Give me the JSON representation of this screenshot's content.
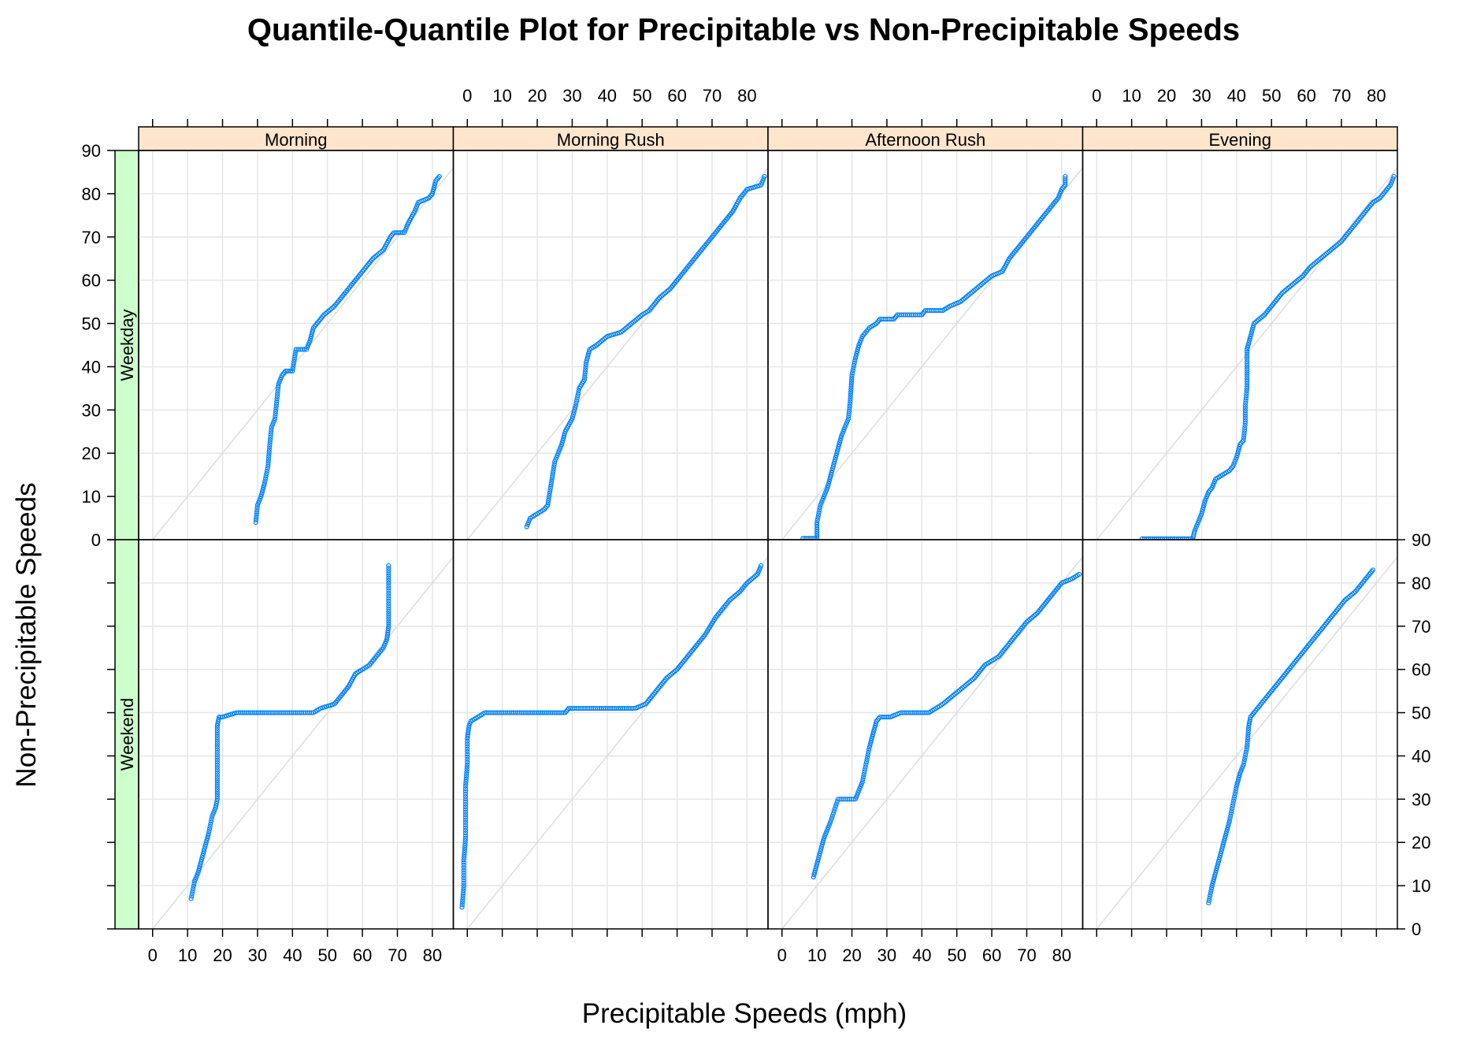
{
  "chart_data": {
    "type": "scatter",
    "title": "Quantile-Quantile Plot for Precipitable vs Non-Precipitable Speeds",
    "xlabel": "Precipitable Speeds (mph)",
    "ylabel": "Non-Precipitable Speeds",
    "xlim": [
      -4,
      86
    ],
    "ylim": [
      0,
      90
    ],
    "ticks": [
      0,
      10,
      20,
      30,
      40,
      50,
      60,
      70,
      80,
      90
    ],
    "tick_labels": [
      "0",
      "10",
      "20",
      "30",
      "40",
      "50",
      "60",
      "70",
      "80",
      "90"
    ],
    "columns": [
      "Morning",
      "Morning Rush",
      "Afternoon Rush",
      "Evening"
    ],
    "rows": [
      "Weekday",
      "Weekend"
    ],
    "reference_line": "y = x",
    "colors": {
      "points": "#0080ff",
      "strip_col": "#ffe5cc",
      "strip_row": "#ccffcc",
      "grid": "#e6e6e6",
      "ref_line": "#dddddd",
      "frame": "#000000"
    },
    "panels": [
      {
        "row": "Weekday",
        "column": "Morning",
        "qq_path": [
          [
            29.5,
            4
          ],
          [
            30,
            8
          ],
          [
            31,
            10
          ],
          [
            32,
            13
          ],
          [
            33,
            17
          ],
          [
            33.5,
            22
          ],
          [
            34,
            26
          ],
          [
            35,
            28
          ],
          [
            35.5,
            32
          ],
          [
            36,
            36
          ],
          [
            37,
            38
          ],
          [
            38,
            39
          ],
          [
            40,
            39
          ],
          [
            41,
            44
          ],
          [
            44,
            44
          ],
          [
            45,
            46
          ],
          [
            46,
            49
          ],
          [
            49,
            52
          ],
          [
            52,
            54
          ],
          [
            56,
            58
          ],
          [
            60,
            62
          ],
          [
            63,
            65
          ],
          [
            66,
            67
          ],
          [
            68,
            70
          ],
          [
            69,
            71
          ],
          [
            72,
            71
          ],
          [
            73,
            73
          ],
          [
            75,
            76
          ],
          [
            76,
            78
          ],
          [
            79,
            79
          ],
          [
            80,
            80
          ],
          [
            81,
            83
          ],
          [
            82,
            84
          ]
        ]
      },
      {
        "row": "Weekday",
        "column": "Morning Rush",
        "qq_path": [
          [
            17,
            3
          ],
          [
            18,
            5
          ],
          [
            20,
            6
          ],
          [
            22,
            7
          ],
          [
            23,
            8
          ],
          [
            24,
            13
          ],
          [
            25,
            18
          ],
          [
            27,
            22
          ],
          [
            28,
            25
          ],
          [
            30,
            28
          ],
          [
            31,
            31
          ],
          [
            32,
            35
          ],
          [
            33.5,
            37
          ],
          [
            34,
            41
          ],
          [
            35,
            44
          ],
          [
            37,
            45
          ],
          [
            40,
            47
          ],
          [
            44,
            48
          ],
          [
            47,
            50
          ],
          [
            50,
            52
          ],
          [
            52,
            53
          ],
          [
            55,
            56
          ],
          [
            58,
            58
          ],
          [
            61,
            61
          ],
          [
            63,
            63
          ],
          [
            65,
            65
          ],
          [
            68,
            68
          ],
          [
            70,
            70
          ],
          [
            74,
            74
          ],
          [
            76,
            76
          ],
          [
            78,
            79
          ],
          [
            80,
            81
          ],
          [
            84,
            82
          ],
          [
            85,
            84
          ]
        ]
      },
      {
        "row": "Weekday",
        "column": "Afternoon Rush",
        "qq_path": [
          [
            6,
            0.3
          ],
          [
            10,
            0.3
          ],
          [
            10,
            4
          ],
          [
            11,
            8
          ],
          [
            12,
            10
          ],
          [
            13,
            12
          ],
          [
            14,
            15
          ],
          [
            15,
            18
          ],
          [
            16,
            21
          ],
          [
            17,
            24
          ],
          [
            18,
            26
          ],
          [
            19,
            28
          ],
          [
            19.5,
            32
          ],
          [
            20,
            38
          ],
          [
            21,
            42
          ],
          [
            22,
            45
          ],
          [
            23,
            47
          ],
          [
            25,
            49
          ],
          [
            27,
            50
          ],
          [
            28,
            51
          ],
          [
            32,
            51
          ],
          [
            33,
            52
          ],
          [
            40,
            52
          ],
          [
            41,
            53
          ],
          [
            46,
            53
          ],
          [
            48,
            54
          ],
          [
            51,
            55
          ],
          [
            54,
            57
          ],
          [
            57,
            59
          ],
          [
            60,
            61
          ],
          [
            63,
            62
          ],
          [
            65,
            65
          ],
          [
            68,
            68
          ],
          [
            70,
            70
          ],
          [
            72,
            72
          ],
          [
            75,
            75
          ],
          [
            77,
            77
          ],
          [
            79,
            79
          ],
          [
            80,
            81
          ],
          [
            81,
            82
          ],
          [
            81,
            84
          ]
        ]
      },
      {
        "row": "Weekday",
        "column": "Evening",
        "qq_path": [
          [
            13,
            0.2
          ],
          [
            27.5,
            0.2
          ],
          [
            28,
            2
          ],
          [
            29,
            4
          ],
          [
            30,
            6
          ],
          [
            31,
            9
          ],
          [
            32,
            11
          ],
          [
            33,
            12
          ],
          [
            34,
            14
          ],
          [
            36,
            15
          ],
          [
            38,
            16
          ],
          [
            39,
            17
          ],
          [
            40,
            19
          ],
          [
            41,
            22
          ],
          [
            42,
            23
          ],
          [
            42.5,
            27
          ],
          [
            42.5,
            31
          ],
          [
            43,
            35
          ],
          [
            43,
            40
          ],
          [
            43,
            44
          ],
          [
            44,
            47
          ],
          [
            45,
            50
          ],
          [
            48,
            52
          ],
          [
            50,
            54
          ],
          [
            53,
            57
          ],
          [
            56,
            59
          ],
          [
            59,
            61
          ],
          [
            61,
            63
          ],
          [
            64,
            65
          ],
          [
            67,
            67
          ],
          [
            70,
            69
          ],
          [
            73,
            72
          ],
          [
            76,
            75
          ],
          [
            79,
            78
          ],
          [
            81,
            79
          ],
          [
            82,
            80
          ],
          [
            84,
            82
          ],
          [
            85,
            84
          ]
        ]
      },
      {
        "row": "Weekend",
        "column": "Morning",
        "qq_path": [
          [
            11,
            7
          ],
          [
            12,
            11
          ],
          [
            13,
            13
          ],
          [
            14,
            16
          ],
          [
            15,
            19
          ],
          [
            16,
            22
          ],
          [
            17,
            26
          ],
          [
            18,
            28
          ],
          [
            18.5,
            30
          ],
          [
            18.5,
            35
          ],
          [
            18.5,
            42
          ],
          [
            18.5,
            47
          ],
          [
            19,
            49
          ],
          [
            20,
            49
          ],
          [
            24,
            50
          ],
          [
            35,
            50
          ],
          [
            46,
            50
          ],
          [
            48,
            51
          ],
          [
            52,
            52
          ],
          [
            54,
            54
          ],
          [
            56,
            56
          ],
          [
            58,
            59
          ],
          [
            60,
            60
          ],
          [
            62,
            61
          ],
          [
            64,
            63
          ],
          [
            66,
            65
          ],
          [
            67,
            67
          ],
          [
            67.5,
            70
          ],
          [
            67.5,
            74
          ],
          [
            67.5,
            80
          ],
          [
            67.5,
            84
          ]
        ]
      },
      {
        "row": "Weekend",
        "column": "Morning Rush",
        "qq_path": [
          [
            -1.5,
            5
          ],
          [
            -1,
            10
          ],
          [
            -1,
            16
          ],
          [
            -0.5,
            21
          ],
          [
            -0.5,
            27
          ],
          [
            -0.5,
            33
          ],
          [
            0,
            38
          ],
          [
            0,
            44
          ],
          [
            0.5,
            47
          ],
          [
            1,
            48
          ],
          [
            3,
            49
          ],
          [
            5,
            50
          ],
          [
            15,
            50
          ],
          [
            28,
            50
          ],
          [
            29,
            51
          ],
          [
            36,
            51
          ],
          [
            48,
            51
          ],
          [
            51,
            52
          ],
          [
            54,
            55
          ],
          [
            57,
            58
          ],
          [
            60,
            60
          ],
          [
            63,
            63
          ],
          [
            66,
            66
          ],
          [
            68,
            68
          ],
          [
            71,
            72
          ],
          [
            73,
            74
          ],
          [
            75,
            76
          ],
          [
            78,
            78
          ],
          [
            80,
            80
          ],
          [
            83,
            82
          ],
          [
            84,
            84
          ]
        ]
      },
      {
        "row": "Weekend",
        "column": "Afternoon Rush",
        "qq_path": [
          [
            9,
            12
          ],
          [
            10,
            15
          ],
          [
            11,
            18
          ],
          [
            12,
            21
          ],
          [
            13,
            23
          ],
          [
            14,
            25
          ],
          [
            16,
            30
          ],
          [
            21,
            30
          ],
          [
            22,
            32
          ],
          [
            23,
            34
          ],
          [
            24,
            38
          ],
          [
            25,
            42
          ],
          [
            26,
            45
          ],
          [
            27,
            48
          ],
          [
            28,
            49
          ],
          [
            31,
            49
          ],
          [
            34,
            50
          ],
          [
            42,
            50
          ],
          [
            44,
            51
          ],
          [
            46,
            52
          ],
          [
            49,
            54
          ],
          [
            52,
            56
          ],
          [
            55,
            58
          ],
          [
            58,
            61
          ],
          [
            62,
            63
          ],
          [
            65,
            66
          ],
          [
            68,
            69
          ],
          [
            70,
            71
          ],
          [
            73,
            73
          ],
          [
            76,
            76
          ],
          [
            78,
            78
          ],
          [
            80,
            80
          ],
          [
            83,
            81
          ],
          [
            85,
            82
          ]
        ]
      },
      {
        "row": "Weekend",
        "column": "Evening",
        "qq_path": [
          [
            32,
            6
          ],
          [
            33,
            10
          ],
          [
            34,
            13
          ],
          [
            35,
            16
          ],
          [
            36,
            19
          ],
          [
            37,
            22
          ],
          [
            38,
            25
          ],
          [
            39,
            29
          ],
          [
            40,
            33
          ],
          [
            41,
            36
          ],
          [
            42,
            38
          ],
          [
            43,
            42
          ],
          [
            43.5,
            47
          ],
          [
            44,
            49
          ],
          [
            47,
            52
          ],
          [
            50,
            55
          ],
          [
            53,
            58
          ],
          [
            56,
            61
          ],
          [
            59,
            64
          ],
          [
            62,
            67
          ],
          [
            65,
            70
          ],
          [
            68,
            73
          ],
          [
            71,
            76
          ],
          [
            74,
            78
          ],
          [
            76,
            80
          ],
          [
            78,
            82
          ],
          [
            79,
            83
          ]
        ]
      }
    ]
  }
}
